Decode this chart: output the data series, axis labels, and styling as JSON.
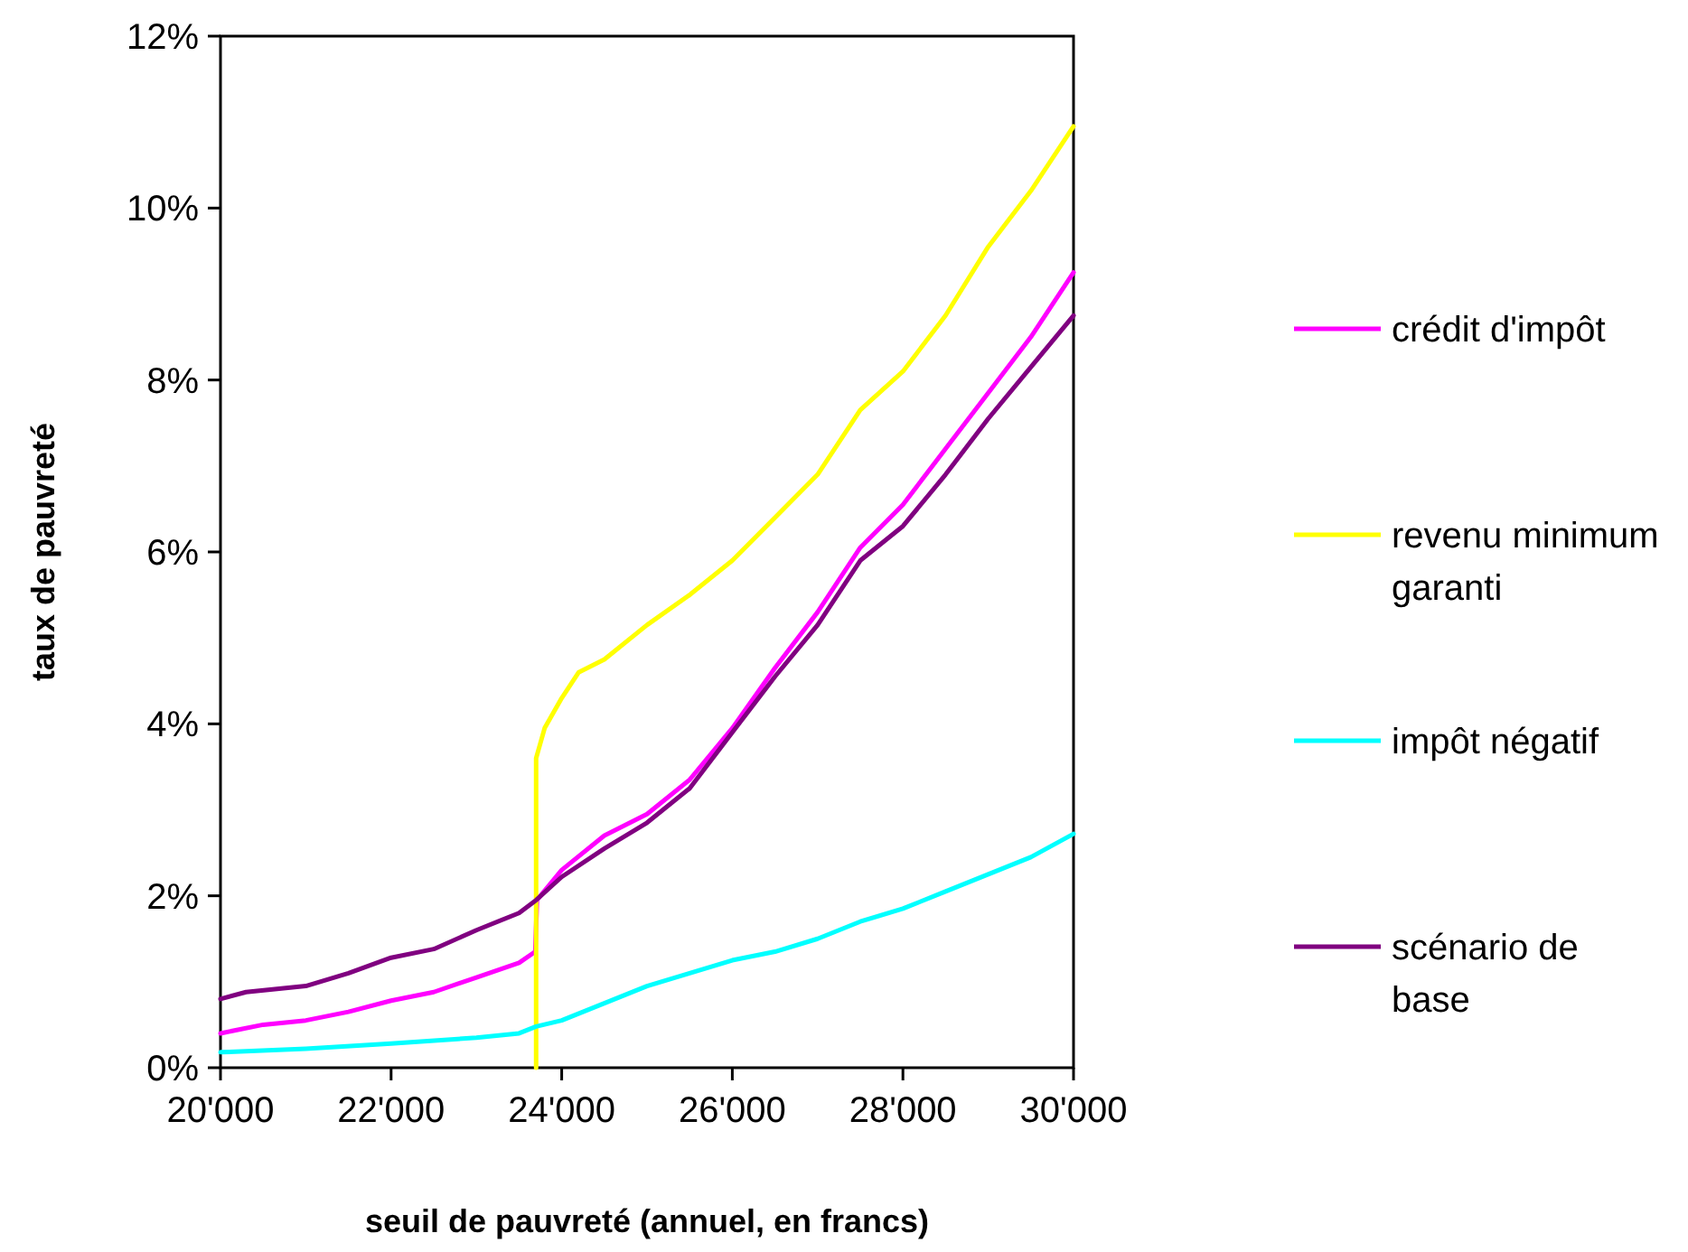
{
  "chart_data": {
    "type": "line",
    "xlabel": "seuil de pauvreté (annuel, en francs)",
    "ylabel": "taux de pauvreté",
    "xlim": [
      20000,
      30000
    ],
    "xticks": [
      {
        "value": 20000,
        "label": "20'000"
      },
      {
        "value": 22000,
        "label": "22'000"
      },
      {
        "value": 24000,
        "label": "24'000"
      },
      {
        "value": 26000,
        "label": "26'000"
      },
      {
        "value": 28000,
        "label": "28'000"
      },
      {
        "value": 30000,
        "label": "30'000"
      }
    ],
    "ylim": [
      0,
      12
    ],
    "yticks": [
      {
        "value": 0,
        "label": "0%"
      },
      {
        "value": 2,
        "label": "2%"
      },
      {
        "value": 4,
        "label": "4%"
      },
      {
        "value": 6,
        "label": "6%"
      },
      {
        "value": 8,
        "label": "8%"
      },
      {
        "value": 10,
        "label": "10%"
      },
      {
        "value": 12,
        "label": "12%"
      }
    ],
    "grid": false,
    "legend": "right",
    "marker": "none",
    "line_style": "solid",
    "series": [
      {
        "name": "crédit d'impôt",
        "color": "#ff00ff",
        "x": [
          20000,
          20500,
          21000,
          21500,
          22000,
          22500,
          23000,
          23500,
          23690,
          23710,
          24000,
          24500,
          25000,
          25500,
          26000,
          26500,
          27000,
          27500,
          28000,
          28500,
          29000,
          29500,
          30000
        ],
        "values": [
          0.4,
          0.5,
          0.55,
          0.65,
          0.78,
          0.88,
          1.05,
          1.22,
          1.35,
          1.95,
          2.3,
          2.7,
          2.95,
          3.35,
          3.95,
          4.65,
          5.3,
          6.05,
          6.55,
          7.2,
          7.85,
          8.5,
          9.25
        ]
      },
      {
        "name": "revenu minimum garanti",
        "color": "#ffff00",
        "x": [
          23700,
          23700,
          23800,
          24000,
          24200,
          24500,
          25000,
          25500,
          26000,
          26500,
          27000,
          27500,
          28000,
          28500,
          29000,
          29500,
          30000
        ],
        "values": [
          0,
          3.6,
          3.95,
          4.3,
          4.6,
          4.75,
          5.15,
          5.5,
          5.9,
          6.4,
          6.9,
          7.65,
          8.1,
          8.75,
          9.55,
          10.2,
          10.95
        ]
      },
      {
        "name": "impôt négatif",
        "color": "#00ffff",
        "x": [
          20000,
          21000,
          22000,
          23000,
          23500,
          23700,
          24000,
          24500,
          25000,
          25500,
          26000,
          26500,
          27000,
          27500,
          28000,
          28500,
          29000,
          29500,
          30000
        ],
        "values": [
          0.18,
          0.22,
          0.28,
          0.35,
          0.4,
          0.48,
          0.55,
          0.75,
          0.95,
          1.1,
          1.25,
          1.35,
          1.5,
          1.7,
          1.85,
          2.05,
          2.25,
          2.45,
          2.72
        ]
      },
      {
        "name": "scénario de base",
        "color": "#800080",
        "x": [
          20000,
          20300,
          21000,
          21500,
          22000,
          22500,
          23000,
          23500,
          23700,
          24000,
          24500,
          25000,
          25500,
          26000,
          26500,
          27000,
          27500,
          28000,
          28500,
          29000,
          29500,
          30000
        ],
        "values": [
          0.8,
          0.88,
          0.95,
          1.1,
          1.28,
          1.38,
          1.6,
          1.8,
          1.95,
          2.22,
          2.55,
          2.85,
          3.25,
          3.9,
          4.55,
          5.15,
          5.9,
          6.3,
          6.9,
          7.55,
          8.15,
          8.75
        ]
      }
    ]
  }
}
